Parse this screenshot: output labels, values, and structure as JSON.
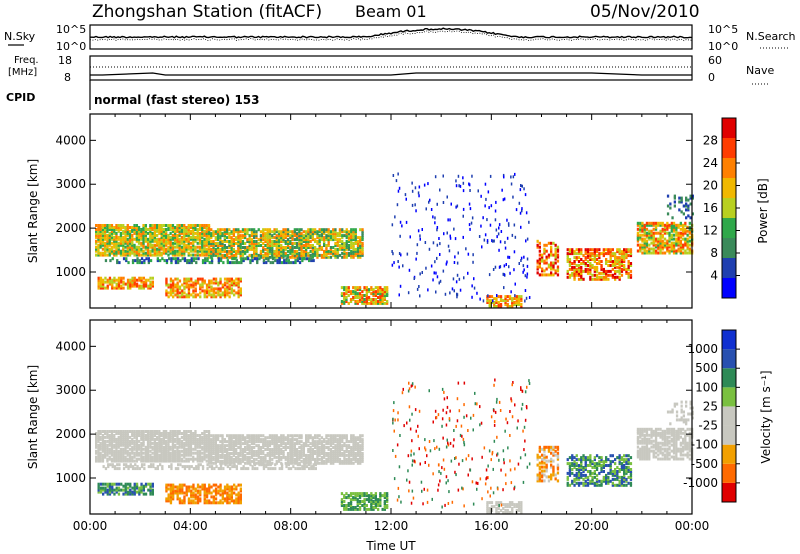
{
  "header": {
    "station_title": "Zhongshan Station (fitACF)",
    "beam": "Beam 01",
    "date": "05/Nov/2010"
  },
  "top_strip": {
    "left_label": "N.Sky",
    "right_label": "N.Search",
    "ticks_left": [
      "10^5",
      "10^0"
    ],
    "ticks_right": [
      "10^5",
      "10^0"
    ]
  },
  "freq_strip": {
    "left_label_1": "Freq.",
    "left_label_2": "[MHz]",
    "right_label": "Nave",
    "ticks_left": [
      "18",
      "8"
    ],
    "ticks_right": [
      "60",
      "0"
    ]
  },
  "cpid": {
    "label": "CPID",
    "value": "normal (fast stereo) 153"
  },
  "colors": {
    "power_scale": [
      "#0000ff",
      "#1f3fb0",
      "#3a8a5a",
      "#2fa84a",
      "#b8d020",
      "#f0b800",
      "#ff8000",
      "#ff3c00",
      "#e00000"
    ],
    "velocity_scale": [
      "#e00000",
      "#ff6a00",
      "#f2a000",
      "#c8c8c0",
      "#c8c8c0",
      "#7ac040",
      "#2e8a56",
      "#2850b0",
      "#1030d0"
    ]
  },
  "chart_data": [
    {
      "type": "heatmap",
      "title": "",
      "ylabel": "Slant Range [km]",
      "xlabel": "",
      "x_range_hours": [
        0,
        24
      ],
      "ylim": [
        180,
        4600
      ],
      "y_ticks": [
        "1000",
        "2000",
        "3000",
        "4000"
      ],
      "x_ticks": [
        "00:00",
        "04:00",
        "08:00",
        "12:00",
        "16:00",
        "20:00",
        "00:00"
      ],
      "colorbar": {
        "label": "Power [dB]",
        "ticks": [
          "28",
          "24",
          "20",
          "16",
          "12",
          "8",
          "4"
        ]
      }
    },
    {
      "type": "heatmap",
      "title": "",
      "ylabel": "Slant Range [km]",
      "xlabel": "Time UT",
      "x_range_hours": [
        0,
        24
      ],
      "ylim": [
        180,
        4600
      ],
      "y_ticks": [
        "1000",
        "2000",
        "3000",
        "4000"
      ],
      "x_ticks": [
        "00:00",
        "04:00",
        "08:00",
        "12:00",
        "16:00",
        "20:00",
        "00:00"
      ],
      "colorbar": {
        "label": "Velocity [m s⁻¹]",
        "ticks": [
          "1000",
          "500",
          "100",
          "25",
          "-25",
          "-100",
          "-500",
          "-1000"
        ]
      }
    }
  ]
}
